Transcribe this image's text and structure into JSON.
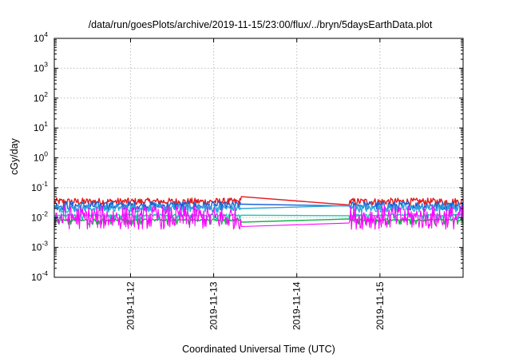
{
  "chart_data": {
    "type": "line",
    "title": "/data/run/goesPlots/archive/2019-11-15/23:00/flux/../bryn/5daysEarthData.plot",
    "xlabel": "Coordinated Universal Time (UTC)",
    "ylabel": "cGy/day",
    "yscale": "log",
    "ylim": [
      0.0001,
      10000
    ],
    "xlim": [
      "2019-11-11T02:00",
      "2019-11-16T00:00"
    ],
    "grid": true,
    "x_ticks": [
      "2019-11-12",
      "2019-11-13",
      "2019-11-14",
      "2019-11-15"
    ],
    "y_ticks": [
      {
        "base": "10",
        "exp": "-4"
      },
      {
        "base": "10",
        "exp": "-3"
      },
      {
        "base": "10",
        "exp": "-2"
      },
      {
        "base": "10",
        "exp": "-1"
      },
      {
        "base": "10",
        "exp": "0"
      },
      {
        "base": "10",
        "exp": "1"
      },
      {
        "base": "10",
        "exp": "2"
      },
      {
        "base": "10",
        "exp": "3"
      },
      {
        "base": "10",
        "exp": "4"
      }
    ],
    "data_gap": [
      "2019-11-13T08:00",
      "2019-11-14T15:00"
    ],
    "series": [
      {
        "color": "#e41a1c",
        "noisy": true,
        "level_low": 0.026,
        "level_high": 0.045,
        "gap_level": 0.05
      },
      {
        "color": "#1f5fd6",
        "noisy": true,
        "level_low": 0.018,
        "level_high": 0.035,
        "gap_level": 0.028
      },
      {
        "color": "#2aa9d9",
        "noisy": true,
        "level_low": 0.015,
        "level_high": 0.028,
        "gap_level": 0.02
      },
      {
        "color": "#19b34a",
        "noisy": false,
        "level_low": 0.006,
        "level_high": 0.009,
        "gap_level": 0.007
      },
      {
        "color": "#17c9b0",
        "noisy": false,
        "level_low": 0.009,
        "level_high": 0.013,
        "gap_level": 0.012
      },
      {
        "color": "#ff00ff",
        "noisy": true,
        "level_low": 0.004,
        "level_high": 0.025,
        "gap_level": 0.005
      }
    ]
  }
}
